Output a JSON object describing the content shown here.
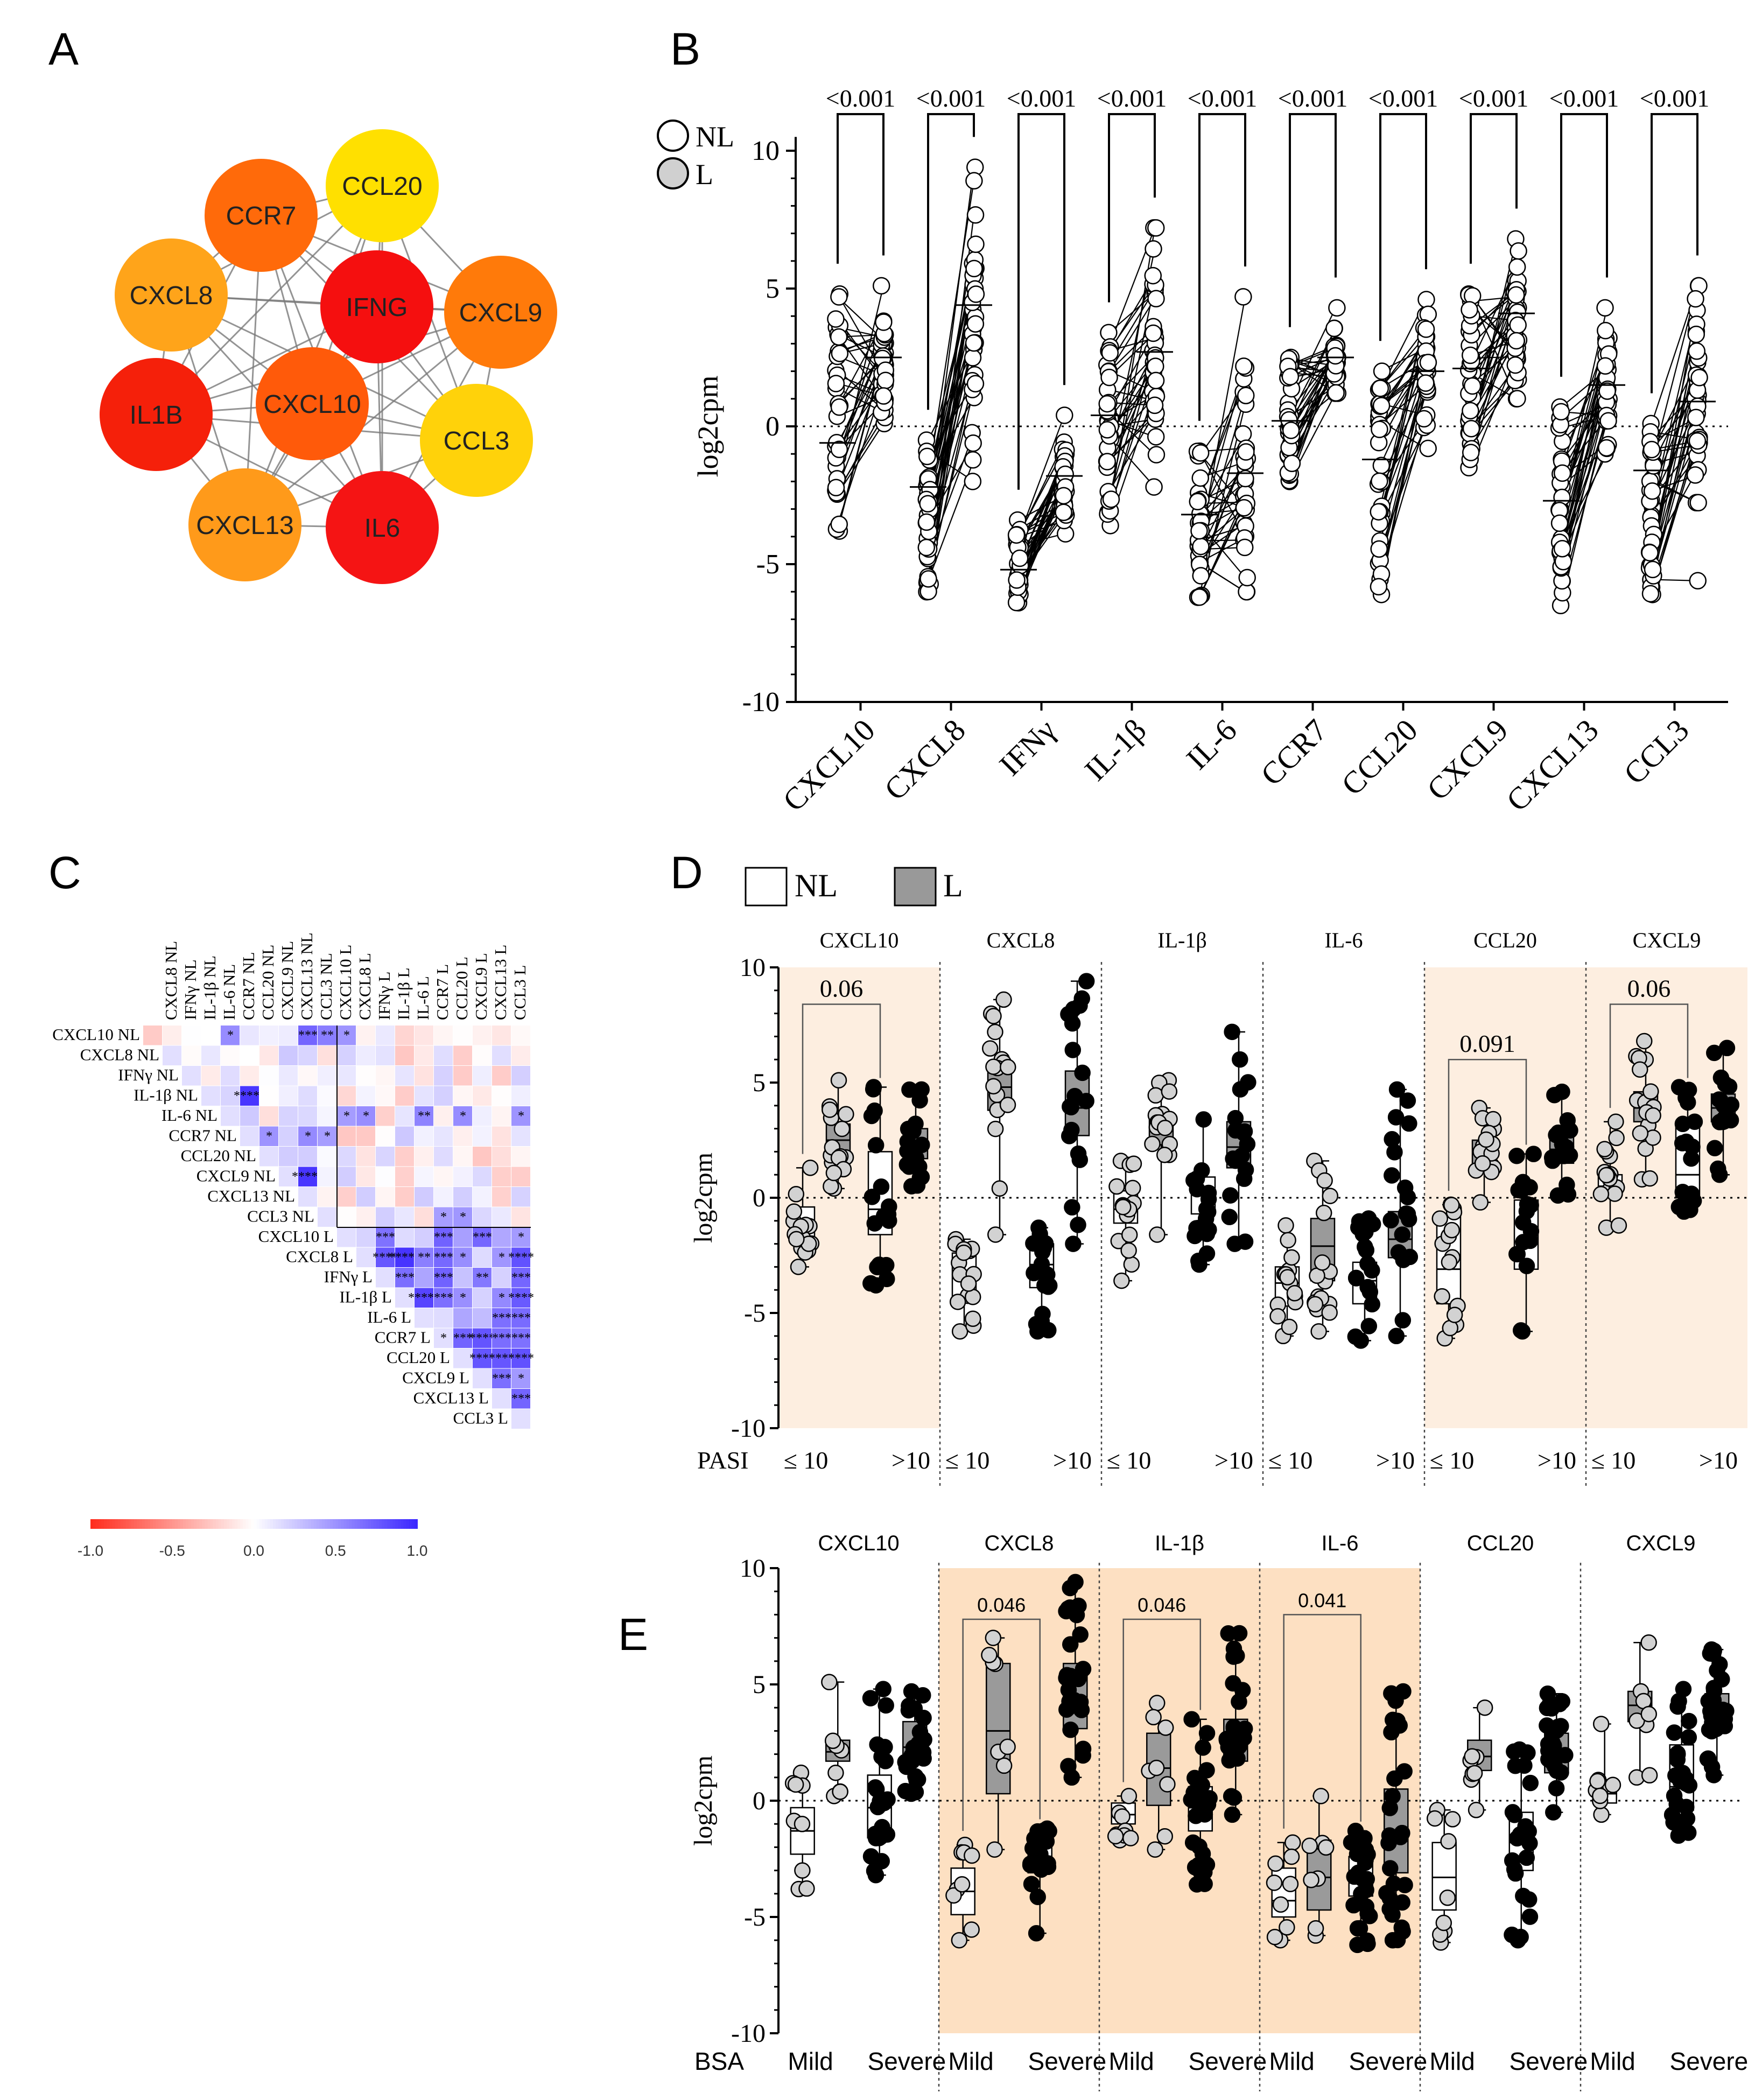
{
  "panel_labels": [
    "A",
    "B",
    "C",
    "D",
    "E"
  ],
  "chart_data": [
    {
      "panel": "A",
      "type": "network",
      "nodes": [
        {
          "id": "CCL20",
          "color": "#FFE000"
        },
        {
          "id": "CCR7",
          "color": "#FF6A0A"
        },
        {
          "id": "CXCL8",
          "color": "#FFA41A"
        },
        {
          "id": "IFNG",
          "color": "#F50F0F"
        },
        {
          "id": "CXCL9",
          "color": "#FF7A0A"
        },
        {
          "id": "IL1B",
          "color": "#F5200A"
        },
        {
          "id": "CXCL10",
          "color": "#FF5A0A"
        },
        {
          "id": "CCL3",
          "color": "#FFD20A"
        },
        {
          "id": "CXCL13",
          "color": "#FF9A1A"
        },
        {
          "id": "IL6",
          "color": "#F51414"
        }
      ],
      "edges": "all pairs"
    },
    {
      "panel": "B",
      "type": "scatter",
      "legend": [
        "NL",
        "L"
      ],
      "ylabel": "log2cpm",
      "yticks": [
        "10",
        "5",
        "0",
        "-5",
        "-10"
      ],
      "ylim": [
        -10,
        10
      ],
      "categories": [
        "CXCL10",
        "CXCL8",
        "IFNγ",
        "IL-1β",
        "IL-6",
        "CCR7",
        "CCL20",
        "CXCL9",
        "CXCL13",
        "CCL3"
      ],
      "pvalues": [
        "<0.001",
        "<0.001",
        "<0.001",
        "<0.001",
        "<0.001",
        "<0.001",
        "<0.001",
        "<0.001",
        "<0.001",
        "<0.001"
      ],
      "series": [
        {
          "name": "NL",
          "mean": [
            -0.6,
            -2.2,
            -5.2,
            0.4,
            -3.2,
            0.2,
            -1.2,
            2.1,
            -2.7,
            -1.6
          ],
          "min": [
            -3.8,
            -6.0,
            -6.4,
            -3.6,
            -6.2,
            -2.0,
            -6.1,
            -1.5,
            -6.5,
            -6.1
          ],
          "max": [
            4.8,
            -0.5,
            -3.4,
            3.4,
            -0.9,
            2.5,
            2.0,
            4.8,
            0.7,
            0.1
          ]
        },
        {
          "name": "L",
          "mean": [
            2.5,
            4.4,
            -1.8,
            2.7,
            -1.7,
            2.5,
            2.0,
            4.1,
            1.5,
            0.9
          ],
          "min": [
            0.1,
            -2.0,
            -3.9,
            -2.2,
            -6.0,
            1.2,
            -0.8,
            1.0,
            -1.0,
            -5.6
          ],
          "max": [
            5.1,
            9.4,
            0.4,
            7.2,
            4.7,
            4.3,
            4.6,
            6.8,
            4.3,
            5.1
          ]
        }
      ]
    },
    {
      "panel": "C",
      "type": "heatmap",
      "labels": [
        "CXCL10 NL",
        "CXCL8 NL",
        "IFNγ NL",
        "IL-1β NL",
        "IL-6 NL",
        "CCR7 NL",
        "CCL20 NL",
        "CXCL9 NL",
        "CXCL13 NL",
        "CCL3 NL",
        "CXCL10 L",
        "CXCL8 L",
        "IFNγ L",
        "IL-1β L",
        "IL-6 L",
        "CCR7 L",
        "CCL20 L",
        "CXCL9 L",
        "CXCL13 L",
        "CCL3 L"
      ],
      "colorbar_ticks": [
        "-1.0",
        "-0.5",
        "0.0",
        "0.5",
        "1.0"
      ],
      "colorbar_range": [
        -1,
        1
      ]
    },
    {
      "panel": "D",
      "type": "box",
      "legend": [
        "NL",
        "L"
      ],
      "ylabel": "log2cpm",
      "yticks": [
        "10",
        "5",
        "0",
        "-5",
        "-10"
      ],
      "ylim": [
        -10,
        10
      ],
      "group_label": "PASI",
      "subgroups": [
        "≤ 10",
        ">10"
      ],
      "genes": [
        {
          "name": "CXCL10",
          "highlight": true,
          "pvalue": "0.06",
          "p_y": 8.4,
          "boxes": [
            {
              "q1": -1.9,
              "med": -1.1,
              "q3": -0.4,
              "min": -3.0,
              "max": 1.3
            },
            {
              "q1": 1.8,
              "med": 2.5,
              "q3": 3.2,
              "min": 0.4,
              "max": 5.1
            },
            {
              "q1": -1.6,
              "med": -0.5,
              "q3": 2.0,
              "min": -3.8,
              "max": 4.8
            },
            {
              "q1": 1.7,
              "med": 2.3,
              "q3": 3.0,
              "min": 0.5,
              "max": 4.7
            }
          ]
        },
        {
          "name": "CXCL8",
          "highlight": false,
          "pvalue": "",
          "p_y": null,
          "boxes": [
            {
              "q1": -4.4,
              "med": -3.4,
              "q3": -2.4,
              "min": -5.8,
              "max": -1.8
            },
            {
              "q1": 3.8,
              "med": 4.8,
              "q3": 5.8,
              "min": -1.6,
              "max": 8.6
            },
            {
              "q1": -3.9,
              "med": -2.9,
              "q3": -2.0,
              "min": -5.8,
              "max": -1.3
            },
            {
              "q1": 2.7,
              "med": 3.9,
              "q3": 5.5,
              "min": -2.0,
              "max": 9.4
            }
          ]
        },
        {
          "name": "IL-1β",
          "highlight": false,
          "pvalue": "",
          "p_y": null,
          "boxes": [
            {
              "q1": -1.1,
              "med": -0.5,
              "q3": 0.3,
              "min": -3.6,
              "max": 1.6
            },
            {
              "q1": 2.3,
              "med": 3.0,
              "q3": 3.6,
              "min": -1.6,
              "max": 5.1
            },
            {
              "q1": -0.7,
              "med": 0.2,
              "q3": 0.9,
              "min": -2.9,
              "max": 3.4
            },
            {
              "q1": 1.3,
              "med": 2.2,
              "q3": 3.3,
              "min": -2.0,
              "max": 7.2
            }
          ]
        },
        {
          "name": "IL-6",
          "highlight": false,
          "pvalue": "",
          "p_y": null,
          "boxes": [
            {
              "q1": -4.7,
              "med": -3.7,
              "q3": -3.0,
              "min": -6.0,
              "max": -1.2
            },
            {
              "q1": -3.6,
              "med": -2.1,
              "q3": -0.9,
              "min": -5.8,
              "max": 1.6
            },
            {
              "q1": -4.6,
              "med": -3.6,
              "q3": -2.8,
              "min": -6.2,
              "max": -0.9
            },
            {
              "q1": -2.6,
              "med": -1.8,
              "q3": -0.6,
              "min": -6.0,
              "max": 4.7
            }
          ]
        },
        {
          "name": "CCL20",
          "highlight": true,
          "pvalue": "0.091",
          "p_y": 6.0,
          "boxes": [
            {
              "q1": -4.6,
              "med": -3.1,
              "q3": -0.7,
              "min": -6.1,
              "max": -0.3
            },
            {
              "q1": 1.2,
              "med": 2.0,
              "q3": 2.5,
              "min": -0.2,
              "max": 3.9
            },
            {
              "q1": -3.1,
              "med": -1.9,
              "q3": -0.1,
              "min": -5.8,
              "max": 1.9
            },
            {
              "q1": 1.5,
              "med": 2.1,
              "q3": 2.8,
              "min": 0.1,
              "max": 4.6
            }
          ]
        },
        {
          "name": "CXCL9",
          "highlight": true,
          "pvalue": "0.06",
          "p_y": 8.4,
          "boxes": [
            {
              "q1": 0.1,
              "med": 0.5,
              "q3": 1.0,
              "min": -1.3,
              "max": 3.3
            },
            {
              "q1": 3.3,
              "med": 3.9,
              "q3": 4.6,
              "min": 0.8,
              "max": 6.8
            },
            {
              "q1": 0.0,
              "med": 1.0,
              "q3": 3.3,
              "min": -0.6,
              "max": 4.8
            },
            {
              "q1": 3.3,
              "med": 3.9,
              "q3": 4.5,
              "min": 1.0,
              "max": 6.5
            }
          ]
        }
      ]
    },
    {
      "panel": "E",
      "type": "box",
      "ylabel": "log2cpm",
      "yticks": [
        "10",
        "5",
        "0",
        "-5",
        "-10"
      ],
      "ylim": [
        -10,
        10
      ],
      "group_label": "BSA",
      "subgroups": [
        "Mild",
        "Severe"
      ],
      "genes": [
        {
          "name": "CXCL10",
          "highlight": false,
          "pvalue": "",
          "p_y": null,
          "boxes": [
            {
              "q1": -2.3,
              "med": -1.3,
              "q3": -0.3,
              "min": -3.8,
              "max": 1.2
            },
            {
              "q1": 1.7,
              "med": 2.1,
              "q3": 2.6,
              "min": 0.2,
              "max": 5.1
            },
            {
              "q1": -1.6,
              "med": -0.3,
              "q3": 1.1,
              "min": -3.2,
              "max": 4.8
            },
            {
              "q1": 1.6,
              "med": 2.3,
              "q3": 3.4,
              "min": 0.3,
              "max": 4.7
            }
          ]
        },
        {
          "name": "CXCL8",
          "highlight": true,
          "pvalue": "0.046",
          "p_y": 7.8,
          "boxes": [
            {
              "q1": -4.9,
              "med": -3.9,
              "q3": -2.9,
              "min": -6.0,
              "max": -1.9
            },
            {
              "q1": 0.3,
              "med": 3.0,
              "q3": 5.9,
              "min": -2.1,
              "max": 7.0
            },
            {
              "q1": -3.1,
              "med": -2.4,
              "q3": -1.8,
              "min": -5.7,
              "max": -1.2
            },
            {
              "q1": 3.1,
              "med": 4.1,
              "q3": 5.9,
              "min": 1.0,
              "max": 9.4
            }
          ]
        },
        {
          "name": "IL-1β",
          "highlight": true,
          "pvalue": "0.046",
          "p_y": 7.8,
          "boxes": [
            {
              "q1": -1.0,
              "med": -0.6,
              "q3": -0.1,
              "min": -1.7,
              "max": 0.2
            },
            {
              "q1": -0.2,
              "med": 1.4,
              "q3": 2.9,
              "min": -2.1,
              "max": 4.2
            },
            {
              "q1": -1.3,
              "med": -0.3,
              "q3": 0.6,
              "min": -3.6,
              "max": 3.5
            },
            {
              "q1": 1.7,
              "med": 2.6,
              "q3": 3.5,
              "min": -0.6,
              "max": 7.2
            }
          ]
        },
        {
          "name": "IL-6",
          "highlight": true,
          "pvalue": "0.041",
          "p_y": 8.0,
          "boxes": [
            {
              "q1": -5.0,
              "med": -4.3,
              "q3": -2.9,
              "min": -6.0,
              "max": -1.8
            },
            {
              "q1": -4.7,
              "med": -3.3,
              "q3": -1.7,
              "min": -5.8,
              "max": 0.2
            },
            {
              "q1": -4.1,
              "med": -3.2,
              "q3": -2.4,
              "min": -6.2,
              "max": -1.3
            },
            {
              "q1": -3.1,
              "med": -1.5,
              "q3": 0.5,
              "min": -6.0,
              "max": 4.7
            }
          ]
        },
        {
          "name": "CCL20",
          "highlight": false,
          "pvalue": "",
          "p_y": null,
          "boxes": [
            {
              "q1": -4.7,
              "med": -3.3,
              "q3": -1.8,
              "min": -6.1,
              "max": -0.4
            },
            {
              "q1": 1.3,
              "med": 1.9,
              "q3": 2.6,
              "min": -0.4,
              "max": 4.0
            },
            {
              "q1": -3.0,
              "med": -1.8,
              "q3": -0.5,
              "min": -6.0,
              "max": 2.2
            },
            {
              "q1": 1.2,
              "med": 2.2,
              "q3": 2.9,
              "min": -0.5,
              "max": 4.6
            }
          ]
        },
        {
          "name": "CXCL9",
          "highlight": false,
          "pvalue": "",
          "p_y": null,
          "boxes": [
            {
              "q1": -0.1,
              "med": 0.3,
              "q3": 0.9,
              "min": -0.6,
              "max": 3.3
            },
            {
              "q1": 3.4,
              "med": 4.1,
              "q3": 4.7,
              "min": 1.0,
              "max": 6.8
            },
            {
              "q1": -0.4,
              "med": 0.6,
              "q3": 2.4,
              "min": -1.5,
              "max": 4.8
            },
            {
              "q1": 3.2,
              "med": 3.8,
              "q3": 4.6,
              "min": 1.1,
              "max": 6.5
            }
          ]
        }
      ]
    }
  ]
}
